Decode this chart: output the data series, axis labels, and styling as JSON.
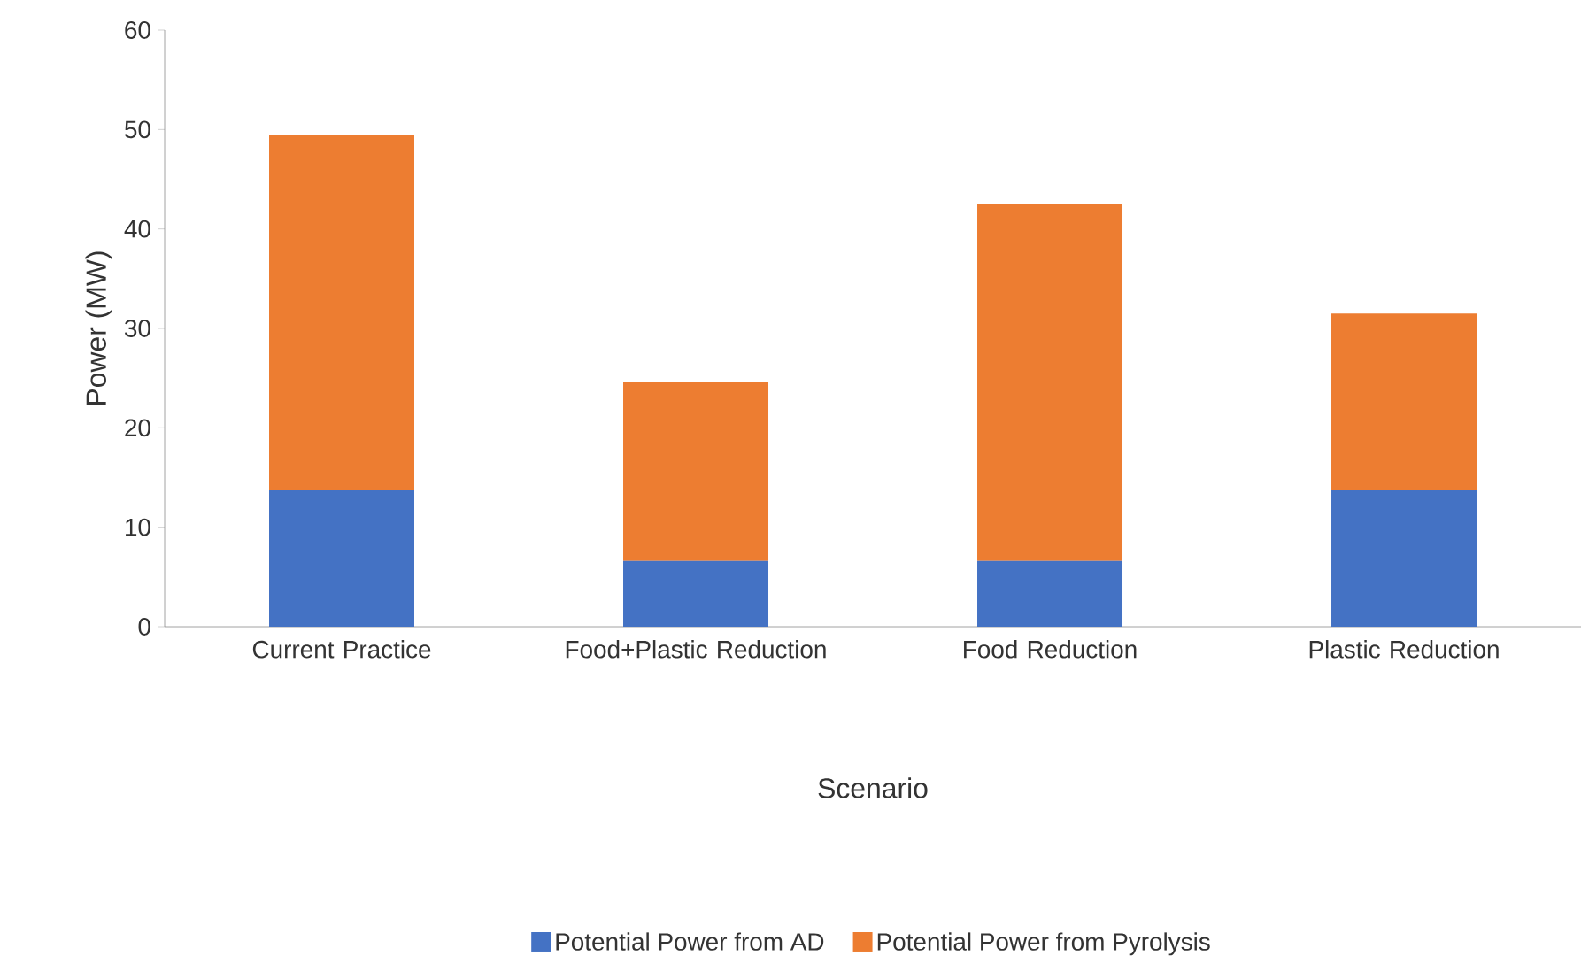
{
  "chart_data": {
    "type": "bar",
    "stacked": true,
    "xlabel": "Scenario",
    "ylabel": "Power (MW)",
    "categories": [
      "Current Practice",
      "Food+Plastic Reduction",
      "Food Reduction",
      "Plastic Reduction"
    ],
    "series": [
      {
        "name": "Potential Power from AD",
        "color": "#4472c4",
        "values": [
          13.7,
          6.6,
          6.6,
          13.7
        ]
      },
      {
        "name": "Potential Power from Pyrolysis",
        "color": "#ed7d31",
        "values": [
          35.8,
          18.0,
          35.9,
          17.8
        ]
      }
    ],
    "ylim": [
      0,
      60
    ],
    "yticks": [
      0,
      10,
      20,
      30,
      40,
      50,
      60
    ],
    "grid": false,
    "legend": "bottom"
  }
}
